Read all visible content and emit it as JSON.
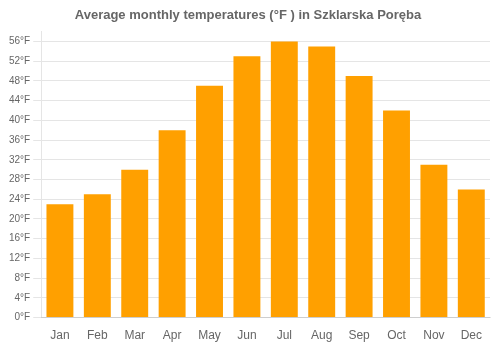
{
  "chart_data": {
    "type": "bar",
    "title": "Average monthly temperatures (°F ) in Szklarska Poręba",
    "categories": [
      "Jan",
      "Feb",
      "Mar",
      "Apr",
      "May",
      "Jun",
      "Jul",
      "Aug",
      "Sep",
      "Oct",
      "Nov",
      "Dec"
    ],
    "values": [
      23,
      25,
      30,
      38,
      47,
      53,
      56,
      55,
      49,
      42,
      31,
      26
    ],
    "color": "#FFA000",
    "ylim": [
      0,
      58
    ],
    "yticks": [
      {
        "value": 0,
        "label": "0°F"
      },
      {
        "value": 4,
        "label": "4°F"
      },
      {
        "value": 8,
        "label": "8°F"
      },
      {
        "value": 12,
        "label": "12°F"
      },
      {
        "value": 16,
        "label": "16°F"
      },
      {
        "value": 20,
        "label": "20°F"
      },
      {
        "value": 24,
        "label": "24°F"
      },
      {
        "value": 28,
        "label": "28°F"
      },
      {
        "value": 32,
        "label": "32°F"
      },
      {
        "value": 36,
        "label": "36°F"
      },
      {
        "value": 40,
        "label": "40°F"
      },
      {
        "value": 44,
        "label": "44°F"
      },
      {
        "value": 48,
        "label": "48°F"
      },
      {
        "value": 52,
        "label": "52°F"
      },
      {
        "value": 56,
        "label": "56°F"
      }
    ],
    "grid": true
  }
}
